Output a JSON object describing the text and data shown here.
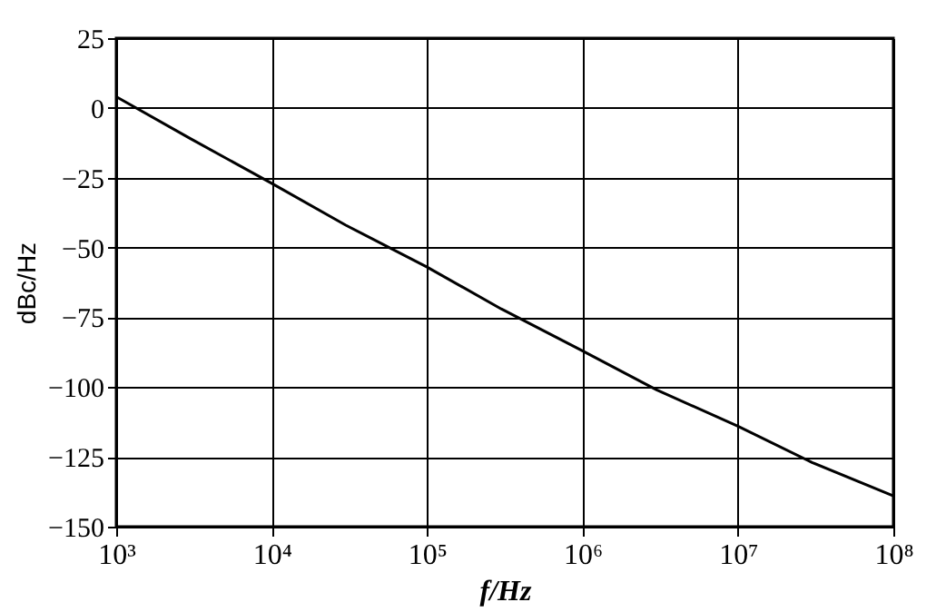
{
  "chart_data": {
    "type": "line",
    "xlabel": "f/Hz",
    "ylabel": "dBc/Hz",
    "x": [
      1000,
      3000,
      10000,
      30000,
      100000,
      300000,
      1000000,
      3000000,
      10000000,
      30000000,
      100000000
    ],
    "series": [
      {
        "color": "#000000",
        "values": [
          4,
          -11,
          -27,
          -42,
          -57,
          -72,
          -87,
          -101,
          -114,
          -127,
          -139
        ]
      }
    ],
    "log": "x",
    "xlim": [
      1000,
      100000000
    ],
    "ylim": [
      -150,
      25
    ],
    "xticks": [
      {
        "value": 1000,
        "label": "10³"
      },
      {
        "value": 10000,
        "label": "10⁴"
      },
      {
        "value": 100000,
        "label": "10⁵"
      },
      {
        "value": 1000000,
        "label": "10⁶"
      },
      {
        "value": 10000000,
        "label": "10⁷"
      },
      {
        "value": 100000000,
        "label": "10⁸"
      }
    ],
    "yticks": [
      -150,
      -125,
      -100,
      -75,
      -50,
      -25,
      0,
      25
    ],
    "grid": true,
    "marker": "none",
    "line_style": "solid"
  }
}
